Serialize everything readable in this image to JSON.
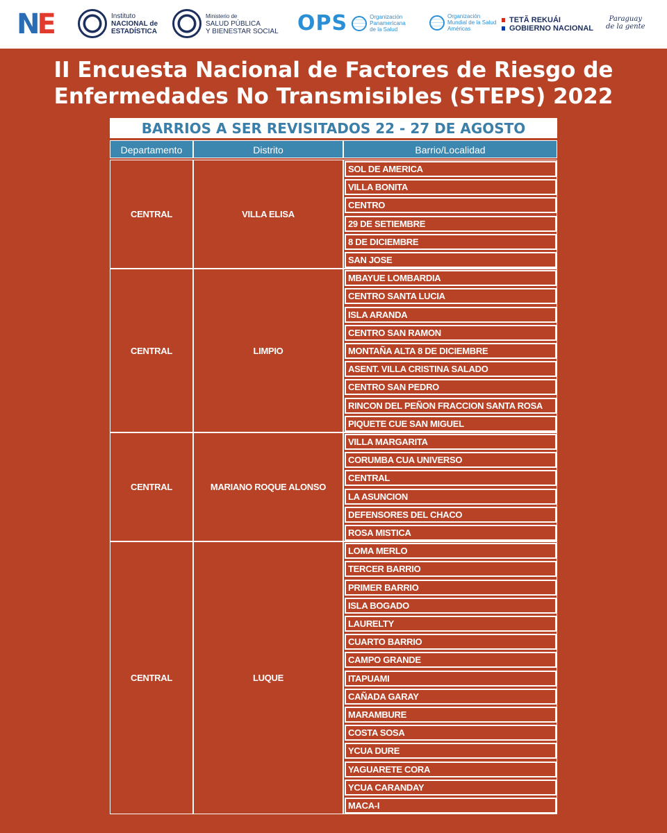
{
  "logos": {
    "ine": {
      "letters_n": "N",
      "letters_e": "E",
      "line1": "Instituto",
      "line2": "NACIONAL de",
      "line3": "ESTADÍSTICA"
    },
    "ministerio": {
      "line1": "Ministerio de",
      "line2": "SALUD PÚBLICA",
      "line3": "Y BIENESTAR SOCIAL"
    },
    "ops": {
      "word": "OPS",
      "line1": "Organización",
      "line2": "Panamericana",
      "line3": "de la Salud"
    },
    "oms": {
      "line1": "Organización",
      "line2": "Mundial de la Salud",
      "line3": "Américas"
    },
    "gobierno": {
      "line1": "TETÃ REKUÁI",
      "line2": "GOBIERNO NACIONAL"
    },
    "paraguay": {
      "line1": "Paraguay",
      "line2": "de la gente"
    }
  },
  "title_line1": "II Encuesta Nacional de Factores de Riesgo de",
  "title_line2": "Enfermedades No Transmisibles (STEPS) 2022",
  "subtitle": "BARRIOS A SER REVISITADOS 22 - 27 DE AGOSTO",
  "table": {
    "headers": [
      "Departamento",
      "Distrito",
      "Barrio/Localidad"
    ],
    "groups": [
      {
        "departamento": "CENTRAL",
        "distrito": "VILLA ELISA",
        "barrios": [
          "SOL DE AMERICA",
          "VILLA BONITA",
          "CENTRO",
          "29 DE SETIEMBRE",
          "8 DE DICIEMBRE",
          "SAN JOSE"
        ]
      },
      {
        "departamento": "CENTRAL",
        "distrito": "LIMPIO",
        "barrios": [
          "MBAYUE LOMBARDIA",
          "CENTRO SANTA LUCIA",
          "ISLA ARANDA",
          "CENTRO SAN RAMON",
          "MONTAÑA ALTA 8 DE DICIEMBRE",
          "ASENT. VILLA CRISTINA SALADO",
          "CENTRO SAN PEDRO",
          "RINCON DEL PEÑON FRACCION SANTA ROSA",
          "PIQUETE CUE SAN MIGUEL"
        ]
      },
      {
        "departamento": "CENTRAL",
        "distrito": "MARIANO ROQUE ALONSO",
        "barrios": [
          "VILLA MARGARITA",
          "CORUMBA CUA UNIVERSO",
          "CENTRAL",
          "LA ASUNCION",
          "DEFENSORES DEL CHACO",
          "ROSA MISTICA"
        ]
      },
      {
        "departamento": "CENTRAL",
        "distrito": "LUQUE",
        "barrios": [
          "LOMA MERLO",
          "TERCER BARRIO",
          "PRIMER BARRIO",
          "ISLA BOGADO",
          "LAURELTY",
          "CUARTO BARRIO",
          "CAMPO GRANDE",
          "ITAPUAMI",
          "CAÑADA GARAY",
          "MARAMBURE",
          "COSTA SOSA",
          "YCUA DURE",
          "YAGUARETE CORA",
          "YCUA CARANDAY",
          "MACA-I"
        ]
      }
    ]
  },
  "colors": {
    "background": "#B84226",
    "header": "#3B87B0",
    "banner_text": "#3B7FA8"
  }
}
